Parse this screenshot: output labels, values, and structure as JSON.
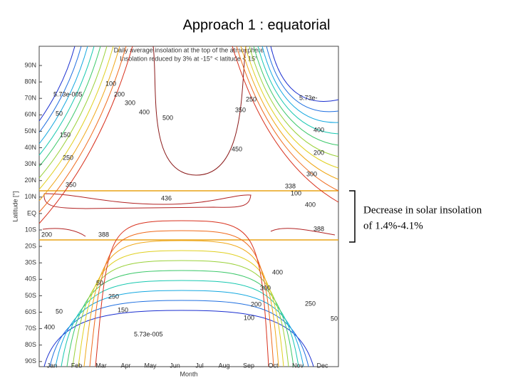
{
  "slide": {
    "title": "Approach 1 : equatorial"
  },
  "figure": {
    "title_lines": [
      "Daily average insolation at the top of the atmosphere",
      "Insolation reduced by 3% at -15° < latitude < 15°"
    ],
    "ylabel": "Latitude [°]",
    "xlabel": "Month",
    "yticks": [
      "90N",
      "80N",
      "70N",
      "60N",
      "50N",
      "40N",
      "30N",
      "20N",
      "10N",
      "EQ",
      "10S",
      "20S",
      "30S",
      "40S",
      "50S",
      "60S",
      "70S",
      "80S",
      "90S"
    ],
    "xticks": [
      "Jan",
      "Feb",
      "Mar",
      "Apr",
      "May",
      "Jun",
      "Jul",
      "Aug",
      "Sep",
      "Oct",
      "Nov",
      "Dec"
    ],
    "contour_labels": [
      "5.73e-005",
      "100",
      "200",
      "300",
      "400",
      "500",
      "50",
      "150",
      "250",
      "350",
      "436",
      "338",
      "100",
      "5.73e-",
      "250",
      "350",
      "450",
      "400",
      "200",
      "300",
      "400",
      "200",
      "388",
      "388",
      "400",
      "50",
      "250",
      "150",
      "50",
      "5.73e-005",
      "100",
      "400",
      "300",
      "200",
      "250",
      "50"
    ]
  },
  "annotation": {
    "lines": [
      "Decrease in solar insolation",
      "of 1.4%-4.1%"
    ]
  }
}
